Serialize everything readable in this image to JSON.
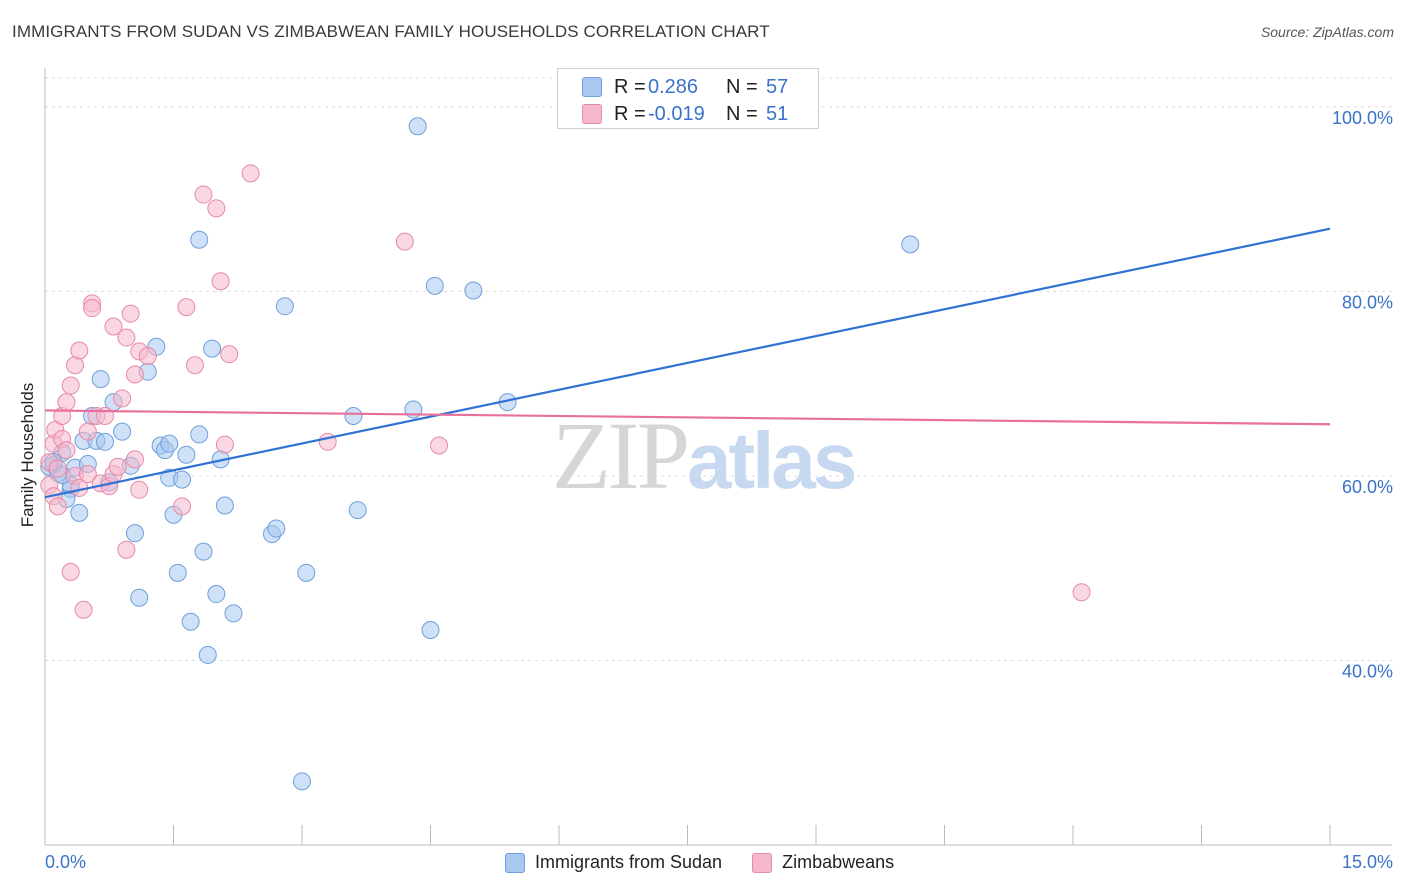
{
  "header": {
    "title": "IMMIGRANTS FROM SUDAN VS ZIMBABWEAN FAMILY HOUSEHOLDS CORRELATION CHART",
    "source": "Source: ZipAtlas.com"
  },
  "watermark": {
    "zip": "ZIP",
    "atlas": "atlas"
  },
  "legend_stats": [
    {
      "r_label": "R =",
      "r_value": "0.286",
      "n_label": "N =",
      "n_value": "57",
      "color": "#a8c8f0",
      "stroke": "#6f9fdc"
    },
    {
      "r_label": "R =",
      "r_value": "-0.019",
      "n_label": "N =",
      "n_value": "51",
      "color": "#f6b8cc",
      "stroke": "#e889a8"
    }
  ],
  "chart_data": {
    "type": "scatter",
    "title": "IMMIGRANTS FROM SUDAN VS ZIMBABWEAN FAMILY HOUSEHOLDS CORRELATION CHART",
    "xlabel": "",
    "ylabel": "Family Households",
    "xlim": [
      0,
      15
    ],
    "ylim": [
      20,
      104
    ],
    "x_tick_labels": [
      "0.0%",
      "15.0%"
    ],
    "y_ticks": [
      40,
      60,
      80,
      100
    ],
    "y_tick_labels": [
      "40.0%",
      "60.0%",
      "80.0%",
      "100.0%"
    ],
    "grid": true,
    "legend": "bottom-center",
    "series": [
      {
        "name": "Immigrants from Sudan",
        "color": "#a8c8f0",
        "stroke": "#6f9fdc",
        "trend": {
          "x": [
            0,
            15
          ],
          "y": [
            57.7,
            86.8
          ],
          "color": "#2f72d4"
        },
        "points": [
          [
            0.1,
            61.2
          ],
          [
            0.2,
            62.5
          ],
          [
            0.15,
            60.3
          ],
          [
            0.3,
            58.6
          ],
          [
            0.35,
            60.9
          ],
          [
            0.4,
            56.0
          ],
          [
            0.45,
            63.8
          ],
          [
            0.55,
            66.5
          ],
          [
            0.6,
            63.8
          ],
          [
            0.65,
            70.5
          ],
          [
            0.7,
            63.7
          ],
          [
            0.75,
            59.3
          ],
          [
            0.8,
            68.0
          ],
          [
            0.9,
            64.8
          ],
          [
            1.0,
            61.1
          ],
          [
            1.05,
            53.8
          ],
          [
            1.1,
            46.8
          ],
          [
            1.2,
            71.3
          ],
          [
            1.3,
            74.0
          ],
          [
            1.35,
            63.3
          ],
          [
            1.4,
            62.8
          ],
          [
            1.45,
            63.5
          ],
          [
            1.45,
            59.8
          ],
          [
            1.5,
            55.8
          ],
          [
            1.55,
            49.5
          ],
          [
            1.6,
            59.6
          ],
          [
            1.65,
            62.3
          ],
          [
            1.7,
            44.2
          ],
          [
            1.8,
            64.5
          ],
          [
            1.85,
            51.8
          ],
          [
            1.9,
            40.6
          ],
          [
            1.95,
            73.8
          ],
          [
            2.0,
            47.2
          ],
          [
            2.05,
            61.8
          ],
          [
            2.1,
            56.8
          ],
          [
            2.2,
            45.1
          ],
          [
            1.8,
            85.6
          ],
          [
            2.8,
            78.4
          ],
          [
            2.65,
            53.7
          ],
          [
            2.7,
            54.3
          ],
          [
            3.05,
            49.5
          ],
          [
            3.0,
            26.9
          ],
          [
            3.6,
            66.5
          ],
          [
            3.65,
            56.3
          ],
          [
            4.3,
            67.2
          ],
          [
            4.35,
            97.9
          ],
          [
            4.55,
            80.6
          ],
          [
            4.5,
            43.3
          ],
          [
            5.0,
            80.1
          ],
          [
            5.4,
            68.0
          ],
          [
            10.1,
            85.1
          ],
          [
            0.05,
            61.0
          ],
          [
            0.25,
            57.5
          ],
          [
            0.5,
            61.3
          ],
          [
            0.3,
            59.0
          ],
          [
            0.2,
            60.1
          ],
          [
            0.1,
            61.5
          ]
        ]
      },
      {
        "name": "Zimbabweans",
        "color": "#f6b8cc",
        "stroke": "#e889a8",
        "trend": {
          "x": [
            0,
            15
          ],
          "y": [
            67.1,
            65.6
          ],
          "color": "#e8709a"
        },
        "points": [
          [
            0.05,
            59.0
          ],
          [
            0.05,
            61.5
          ],
          [
            0.1,
            63.5
          ],
          [
            0.1,
            57.8
          ],
          [
            0.12,
            65.0
          ],
          [
            0.15,
            60.8
          ],
          [
            0.15,
            56.7
          ],
          [
            0.2,
            64.0
          ],
          [
            0.2,
            66.5
          ],
          [
            0.25,
            68.0
          ],
          [
            0.25,
            62.8
          ],
          [
            0.3,
            69.8
          ],
          [
            0.3,
            49.6
          ],
          [
            0.35,
            72.0
          ],
          [
            0.35,
            60.0
          ],
          [
            0.4,
            73.6
          ],
          [
            0.4,
            58.7
          ],
          [
            0.45,
            45.5
          ],
          [
            0.5,
            64.8
          ],
          [
            0.5,
            60.2
          ],
          [
            0.55,
            78.7
          ],
          [
            0.55,
            78.2
          ],
          [
            0.6,
            66.5
          ],
          [
            0.65,
            59.2
          ],
          [
            0.7,
            66.5
          ],
          [
            0.75,
            58.9
          ],
          [
            0.8,
            60.2
          ],
          [
            0.8,
            76.2
          ],
          [
            0.85,
            61.0
          ],
          [
            0.9,
            68.4
          ],
          [
            0.95,
            52.0
          ],
          [
            0.95,
            75.0
          ],
          [
            1.0,
            77.6
          ],
          [
            1.05,
            71.0
          ],
          [
            1.05,
            61.8
          ],
          [
            1.1,
            73.5
          ],
          [
            1.1,
            58.5
          ],
          [
            1.2,
            73.0
          ],
          [
            1.6,
            56.7
          ],
          [
            1.65,
            78.3
          ],
          [
            1.75,
            72.0
          ],
          [
            1.85,
            90.5
          ],
          [
            2.0,
            89.0
          ],
          [
            2.05,
            81.1
          ],
          [
            2.1,
            63.4
          ],
          [
            2.15,
            73.2
          ],
          [
            2.4,
            92.8
          ],
          [
            3.3,
            63.7
          ],
          [
            4.2,
            85.4
          ],
          [
            4.6,
            63.3
          ],
          [
            12.1,
            47.4
          ]
        ]
      }
    ]
  }
}
